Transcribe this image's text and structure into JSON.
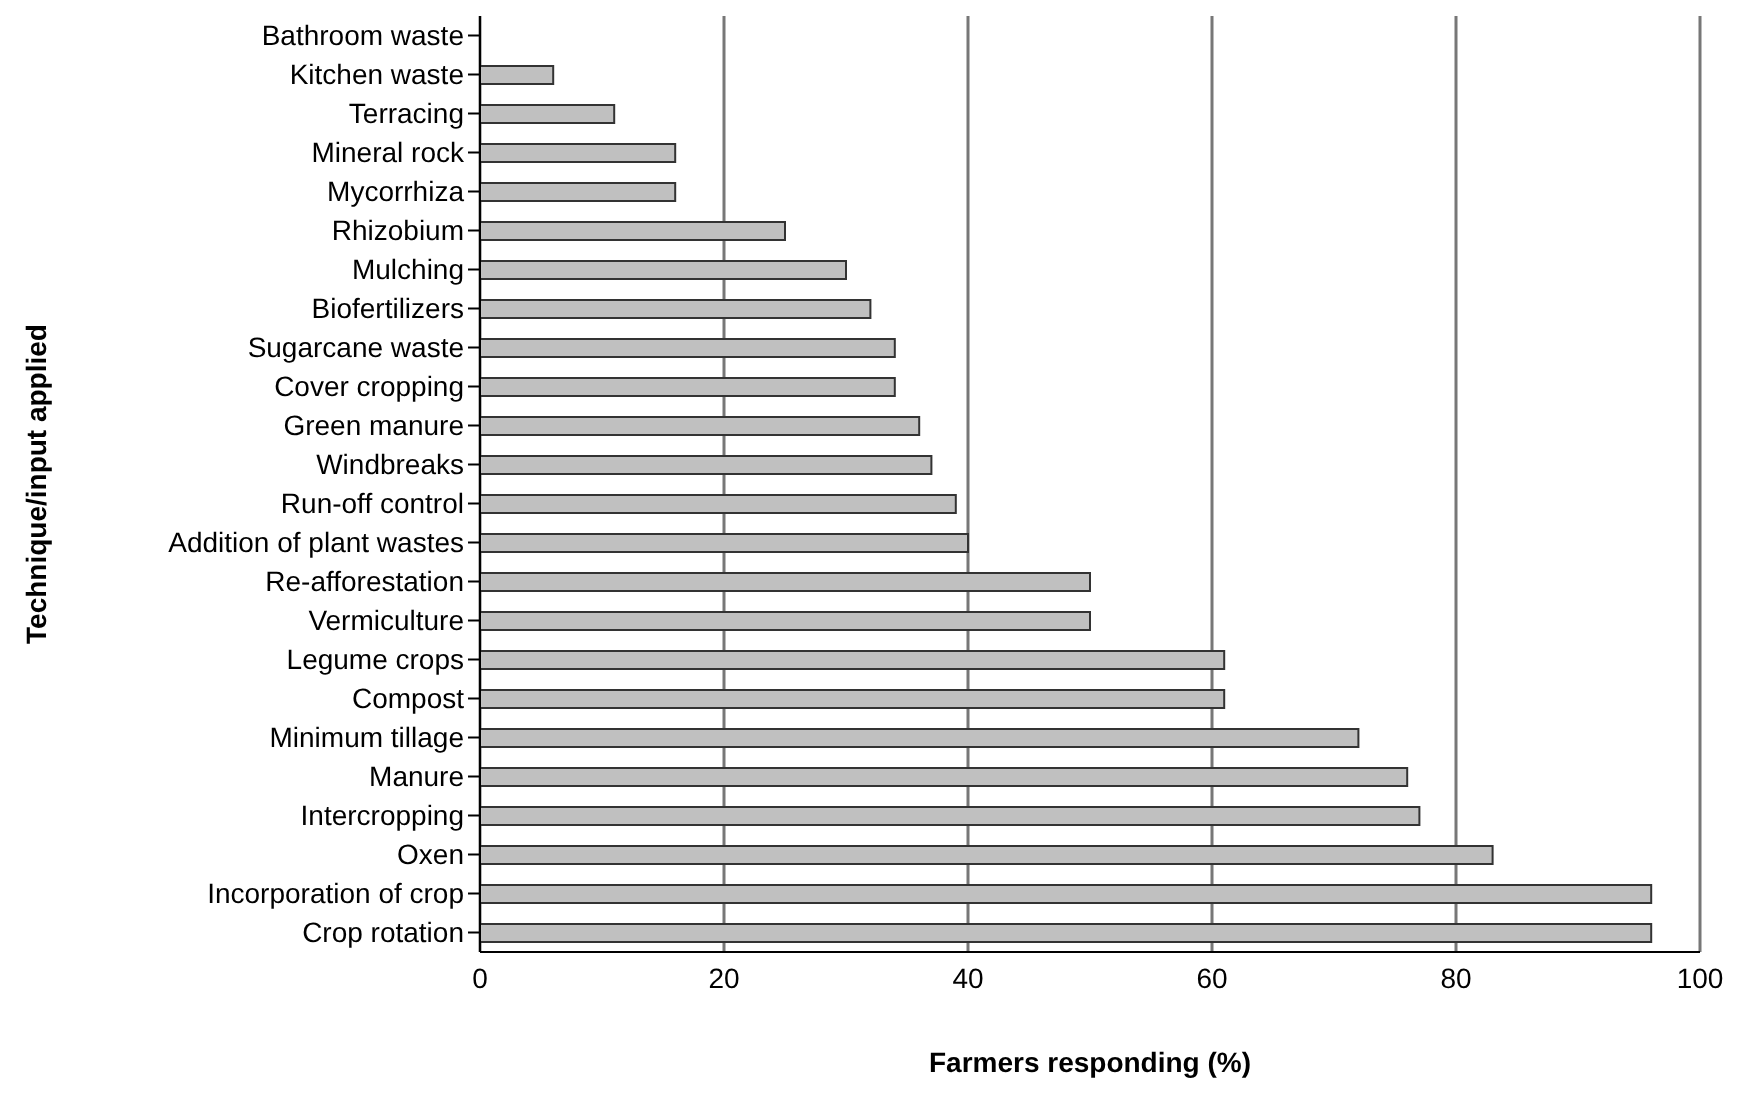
{
  "chart_data": {
    "type": "bar",
    "orientation": "horizontal",
    "xlabel": "Farmers responding (%)",
    "ylabel": "Technique/input applied",
    "categories": [
      "Bathroom waste",
      "Kitchen  waste",
      "Terracing",
      "Mineral rock",
      "Mycorrhiza",
      "Rhizobium",
      "Mulching",
      "Biofertilizers",
      "Sugarcane waste",
      "Cover cropping",
      "Green manure",
      "Windbreaks",
      "Run-off control",
      "Addition of plant wastes",
      "Re-afforestation",
      "Vermiculture",
      "Legume crops",
      "Compost",
      "Minimum tillage",
      "Manure",
      "Intercropping",
      "Oxen",
      "Incorporation of crop",
      "Crop rotation"
    ],
    "values": [
      0,
      6,
      11,
      16,
      16,
      25,
      30,
      32,
      34,
      34,
      36,
      37,
      39,
      40,
      50,
      50,
      61,
      61,
      72,
      76,
      77,
      83,
      96,
      96
    ],
    "color": "#c0c0c0",
    "xlim": [
      0,
      100
    ],
    "xticks": [
      0,
      20,
      40,
      60,
      80,
      100
    ],
    "grid": "x"
  }
}
